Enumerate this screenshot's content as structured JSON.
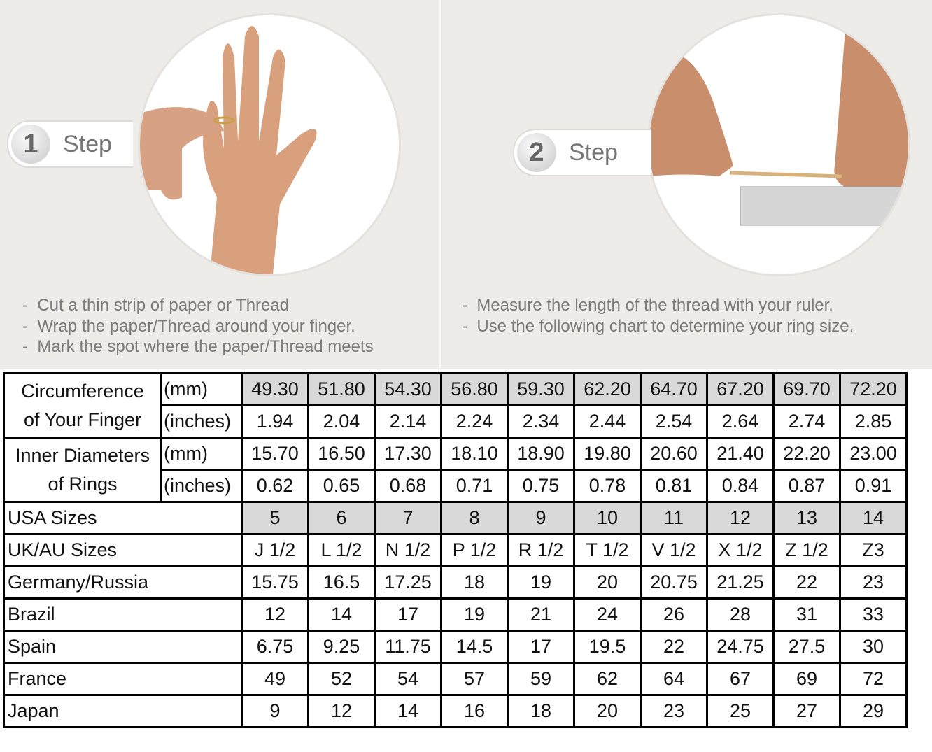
{
  "steps": [
    {
      "number": "1",
      "label": "Step",
      "instructions": [
        "Cut a thin strip of paper or Thread",
        "Wrap the paper/Thread around your finger.",
        "Mark the spot where the paper/Thread meets"
      ]
    },
    {
      "number": "2",
      "label": "Step",
      "instructions": [
        "Measure the length of the thread with your ruler.",
        "Use the following chart to determine your ring size."
      ]
    }
  ],
  "table": {
    "circumference": {
      "label_line1": "Circumference",
      "label_line2": "of Your Finger",
      "unit_mm": "(mm)",
      "unit_in": "(inches)",
      "mm": [
        "49.30",
        "51.80",
        "54.30",
        "56.80",
        "59.30",
        "62.20",
        "64.70",
        "67.20",
        "69.70",
        "72.20"
      ],
      "inches": [
        "1.94",
        "2.04",
        "2.14",
        "2.24",
        "2.34",
        "2.44",
        "2.54",
        "2.64",
        "2.74",
        "2.85"
      ]
    },
    "diameter": {
      "label_line1": "Inner Diameters",
      "label_line2": "of Rings",
      "unit_mm": "(mm)",
      "unit_in": "(inches)",
      "mm": [
        "15.70",
        "16.50",
        "17.30",
        "18.10",
        "18.90",
        "19.80",
        "20.60",
        "21.40",
        "22.20",
        "23.00"
      ],
      "inches": [
        "0.62",
        "0.65",
        "0.68",
        "0.71",
        "0.75",
        "0.78",
        "0.81",
        "0.84",
        "0.87",
        "0.91"
      ]
    },
    "rows": [
      {
        "label": "USA Sizes",
        "values": [
          "5",
          "6",
          "7",
          "8",
          "9",
          "10",
          "11",
          "12",
          "13",
          "14"
        ],
        "shaded": true
      },
      {
        "label": "UK/AU Sizes",
        "values": [
          "J 1/2",
          "L 1/2",
          "N 1/2",
          "P 1/2",
          "R 1/2",
          "T 1/2",
          "V 1/2",
          "X 1/2",
          "Z 1/2",
          "Z3"
        ]
      },
      {
        "label": "Germany/Russia",
        "values": [
          "15.75",
          "16.5",
          "17.25",
          "18",
          "19",
          "20",
          "20.75",
          "21.25",
          "22",
          "23"
        ]
      },
      {
        "label": "Brazil",
        "values": [
          "12",
          "14",
          "17",
          "19",
          "21",
          "24",
          "26",
          "28",
          "31",
          "33"
        ]
      },
      {
        "label": "Spain",
        "values": [
          "6.75",
          "9.25",
          "11.75",
          "14.5",
          "17",
          "19.5",
          "22",
          "24.75",
          "27.5",
          "30"
        ]
      },
      {
        "label": "France",
        "values": [
          "49",
          "52",
          "54",
          "57",
          "59",
          "62",
          "64",
          "67",
          "69",
          "72"
        ]
      },
      {
        "label": "Japan",
        "values": [
          "9",
          "12",
          "14",
          "16",
          "18",
          "20",
          "23",
          "25",
          "27",
          "29"
        ]
      }
    ]
  },
  "colors": {
    "background": "#eeece9",
    "shaded_cell": "#d9d9d9",
    "skin": "#d9a07e"
  }
}
